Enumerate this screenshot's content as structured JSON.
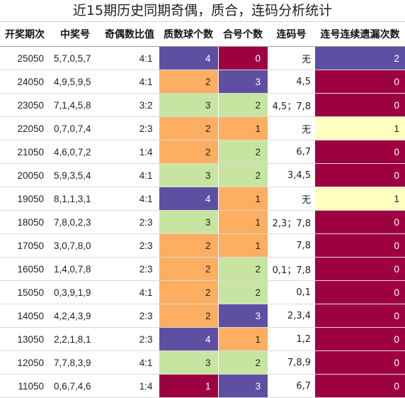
{
  "title": "近15期历史同期奇偶，质合，连码分析统计",
  "headers": [
    "开奖期次",
    "中奖号",
    "奇偶数比值",
    "质数球个数",
    "合号个数",
    "连码号",
    "连号连续遗漏次数"
  ],
  "palette": {
    "purple": "#5e4fa2",
    "crimson": "#9e0142",
    "orange": "#fdae61",
    "green": "#c7e5a0",
    "cream": "#ffffbf"
  },
  "rows": [
    {
      "period": "25050",
      "nums": "5,7,0,5,7",
      "ratio": "4:1",
      "prime": "4",
      "prime_color": "purple",
      "comp": "0",
      "comp_color": "crimson",
      "consec": "无",
      "miss": "2",
      "miss_color": "purple"
    },
    {
      "period": "24050",
      "nums": "4,9,5,9,5",
      "ratio": "4:1",
      "prime": "2",
      "prime_color": "orange",
      "comp": "3",
      "comp_color": "purple",
      "consec": "4,5",
      "miss": "0",
      "miss_color": "crimson"
    },
    {
      "period": "23050",
      "nums": "7,1,4,5,8",
      "ratio": "3:2",
      "prime": "3",
      "prime_color": "green",
      "comp": "2",
      "comp_color": "green",
      "consec": "4,5；7,8",
      "miss": "0",
      "miss_color": "crimson"
    },
    {
      "period": "22050",
      "nums": "0,7,0,7,4",
      "ratio": "2:3",
      "prime": "2",
      "prime_color": "orange",
      "comp": "1",
      "comp_color": "orange",
      "consec": "无",
      "miss": "1",
      "miss_color": "cream"
    },
    {
      "period": "21050",
      "nums": "4,6,0,7,2",
      "ratio": "1:4",
      "prime": "2",
      "prime_color": "orange",
      "comp": "2",
      "comp_color": "green",
      "consec": "6,7",
      "miss": "0",
      "miss_color": "crimson"
    },
    {
      "period": "20050",
      "nums": "5,9,3,5,4",
      "ratio": "4:1",
      "prime": "3",
      "prime_color": "green",
      "comp": "2",
      "comp_color": "green",
      "consec": "3,4,5",
      "miss": "0",
      "miss_color": "crimson"
    },
    {
      "period": "19050",
      "nums": "8,1,1,3,1",
      "ratio": "4:1",
      "prime": "4",
      "prime_color": "purple",
      "comp": "1",
      "comp_color": "orange",
      "consec": "无",
      "miss": "1",
      "miss_color": "cream"
    },
    {
      "period": "18050",
      "nums": "7,8,0,2,3",
      "ratio": "2:3",
      "prime": "3",
      "prime_color": "green",
      "comp": "1",
      "comp_color": "orange",
      "consec": "2,3；7,8",
      "miss": "0",
      "miss_color": "crimson"
    },
    {
      "period": "17050",
      "nums": "3,0,7,8,0",
      "ratio": "2:3",
      "prime": "2",
      "prime_color": "orange",
      "comp": "1",
      "comp_color": "orange",
      "consec": "7,8",
      "miss": "0",
      "miss_color": "crimson"
    },
    {
      "period": "16050",
      "nums": "1,4,0,7,8",
      "ratio": "2:3",
      "prime": "2",
      "prime_color": "orange",
      "comp": "2",
      "comp_color": "green",
      "consec": "0,1；7,8",
      "miss": "0",
      "miss_color": "crimson"
    },
    {
      "period": "15050",
      "nums": "0,3,9,1,9",
      "ratio": "4:1",
      "prime": "2",
      "prime_color": "orange",
      "comp": "2",
      "comp_color": "green",
      "consec": "0,1",
      "miss": "0",
      "miss_color": "crimson"
    },
    {
      "period": "14050",
      "nums": "4,2,4,3,9",
      "ratio": "2:3",
      "prime": "2",
      "prime_color": "orange",
      "comp": "3",
      "comp_color": "purple",
      "consec": "2,3,4",
      "miss": "0",
      "miss_color": "crimson"
    },
    {
      "period": "13050",
      "nums": "2,2,1,8,1",
      "ratio": "2:3",
      "prime": "4",
      "prime_color": "purple",
      "comp": "1",
      "comp_color": "orange",
      "consec": "1,2",
      "miss": "0",
      "miss_color": "crimson"
    },
    {
      "period": "12050",
      "nums": "7,7,8,3,9",
      "ratio": "4:1",
      "prime": "3",
      "prime_color": "green",
      "comp": "2",
      "comp_color": "green",
      "consec": "7,8,9",
      "miss": "0",
      "miss_color": "crimson"
    },
    {
      "period": "11050",
      "nums": "0,6,7,4,6",
      "ratio": "1:4",
      "prime": "1",
      "prime_color": "crimson",
      "comp": "3",
      "comp_color": "purple",
      "consec": "6,7",
      "miss": "0",
      "miss_color": "crimson"
    }
  ]
}
